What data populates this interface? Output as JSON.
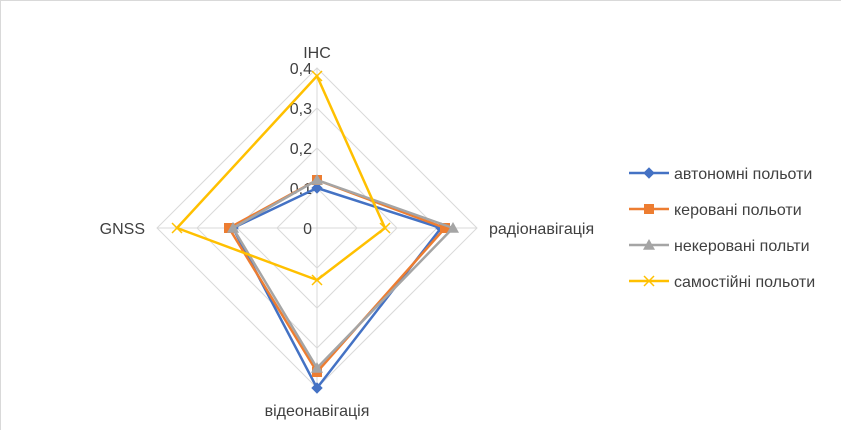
{
  "chart_data": {
    "type": "radar",
    "axes": [
      "ІНС",
      "радіонавігація",
      "відеонавігація",
      "GNSS"
    ],
    "ticks": [
      "0",
      "0,1",
      "0,2",
      "0,3",
      "0,4"
    ],
    "rlim": [
      0,
      0.4
    ],
    "grid": true,
    "legend_position": "right",
    "series": [
      {
        "name": "автономні польоти",
        "values": [
          0.1,
          0.31,
          0.4,
          0.21
        ],
        "color": "#4472C4",
        "marker": "diamond"
      },
      {
        "name": "керовані польоти",
        "values": [
          0.12,
          0.32,
          0.36,
          0.22
        ],
        "color": "#ED7D31",
        "marker": "square"
      },
      {
        "name": "некеровані польти",
        "values": [
          0.12,
          0.34,
          0.35,
          0.21
        ],
        "color": "#A5A5A5",
        "marker": "triangle"
      },
      {
        "name": "самостійні польоти",
        "values": [
          0.38,
          0.17,
          0.13,
          0.35
        ],
        "color": "#FFC000",
        "marker": "x"
      }
    ]
  }
}
